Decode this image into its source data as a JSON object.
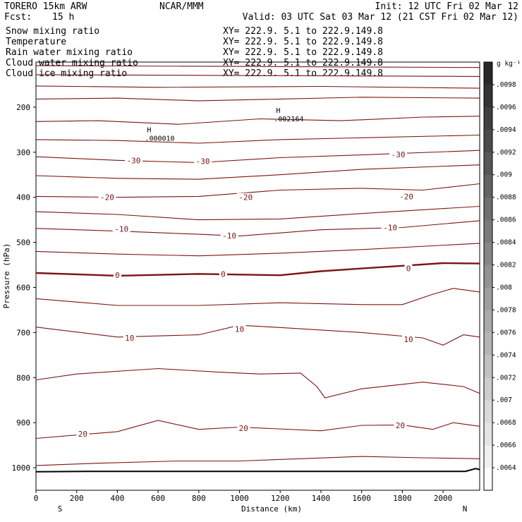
{
  "header": {
    "model": "TORERO  15km ARW",
    "org": "NCAR/MMM",
    "init": "Init: 12 UTC Fri 02 Mar 12",
    "fcst_label": "Fcst:",
    "fcst_value": "15 h",
    "valid": "Valid: 03 UTC Sat 03 Mar 12 (21 CST Fri 02 Mar 12)"
  },
  "fields": [
    {
      "name": "Snow mixing ratio",
      "color": "#000000",
      "xy": "XY= 222.9.  5.1 to 222.9.149.8",
      "xy_color": "#000000"
    },
    {
      "name": "Temperature",
      "color": "#cc0000",
      "xy": "XY= 222.9.  5.1 to 222.9.149.8",
      "xy_color": "#cc0000"
    },
    {
      "name": "Rain water mixing ratio",
      "color": "#cc0000",
      "xy": "XY= 222.9.  5.1 to 222.9.149.8",
      "xy_color": "#cc0000"
    },
    {
      "name": "Cloud water mixing ratio",
      "color": "#2222aa",
      "xy": "XY= 222.9.  5.1 to 222.9.149.8",
      "xy_color": "#2222aa"
    },
    {
      "name": "Cloud ice mixing ratio",
      "color": "#000000",
      "xy": "XY= 222.9.  5.1 to 222.9.149.8",
      "xy_color": "#000000"
    }
  ],
  "colors": {
    "isotherm": "#7a1414",
    "ground": "#000000"
  },
  "chart_data": {
    "type": "line",
    "xlabel": "Distance (km)",
    "ylabel": "Pressure (hPa)",
    "xlim": [
      0,
      2180
    ],
    "ylim": [
      1050,
      100
    ],
    "x_ticks": [
      0,
      200,
      400,
      600,
      800,
      1000,
      1200,
      1400,
      1600,
      1800,
      2000
    ],
    "y_ticks": [
      200,
      300,
      400,
      500,
      600,
      700,
      800,
      900,
      1000
    ],
    "x_end_labels": {
      "left": "S",
      "right": "N"
    },
    "isotherm_interval_c": 5,
    "isotherms": [
      {
        "temp": -60,
        "p": [
          [
            0,
            108
          ],
          [
            1200,
            110
          ],
          [
            2180,
            112
          ]
        ]
      },
      {
        "temp": -55,
        "p": [
          [
            0,
            128
          ],
          [
            1200,
            130
          ],
          [
            2180,
            132
          ]
        ]
      },
      {
        "temp": -50,
        "p": [
          [
            0,
            153
          ],
          [
            600,
            156
          ],
          [
            1400,
            154
          ],
          [
            2180,
            158
          ]
        ]
      },
      {
        "temp": -45,
        "p": [
          [
            0,
            182
          ],
          [
            400,
            180
          ],
          [
            800,
            186
          ],
          [
            1200,
            182
          ],
          [
            1600,
            178
          ],
          [
            2180,
            180
          ]
        ]
      },
      {
        "temp": -40,
        "p": [
          [
            0,
            232
          ],
          [
            300,
            230
          ],
          [
            700,
            238
          ],
          [
            1100,
            226
          ],
          [
            1500,
            230
          ],
          [
            1900,
            222
          ],
          [
            2180,
            220
          ]
        ]
      },
      {
        "temp": -35,
        "p": [
          [
            0,
            272
          ],
          [
            400,
            274
          ],
          [
            800,
            280
          ],
          [
            1200,
            272
          ],
          [
            1600,
            268
          ],
          [
            2180,
            262
          ]
        ]
      },
      {
        "temp": -30,
        "p": [
          [
            0,
            310
          ],
          [
            400,
            318
          ],
          [
            800,
            323
          ],
          [
            1200,
            312
          ],
          [
            1600,
            306
          ],
          [
            2180,
            296
          ]
        ]
      },
      {
        "temp": -25,
        "p": [
          [
            0,
            352
          ],
          [
            400,
            358
          ],
          [
            800,
            360
          ],
          [
            1200,
            350
          ],
          [
            1600,
            338
          ],
          [
            2180,
            328
          ]
        ]
      },
      {
        "temp": -20,
        "p": [
          [
            0,
            398
          ],
          [
            400,
            400
          ],
          [
            800,
            398
          ],
          [
            1200,
            384
          ],
          [
            1600,
            380
          ],
          [
            1900,
            384
          ],
          [
            2180,
            370
          ]
        ]
      },
      {
        "temp": -15,
        "p": [
          [
            0,
            432
          ],
          [
            400,
            438
          ],
          [
            800,
            450
          ],
          [
            1200,
            448
          ],
          [
            1600,
            436
          ],
          [
            2180,
            420
          ]
        ]
      },
      {
        "temp": -10,
        "p": [
          [
            0,
            469
          ],
          [
            400,
            475
          ],
          [
            800,
            482
          ],
          [
            1000,
            486
          ],
          [
            1400,
            472
          ],
          [
            1800,
            467
          ],
          [
            2180,
            452
          ]
        ]
      },
      {
        "temp": -5,
        "p": [
          [
            0,
            520
          ],
          [
            400,
            526
          ],
          [
            800,
            530
          ],
          [
            1200,
            524
          ],
          [
            1600,
            516
          ],
          [
            2180,
            502
          ]
        ]
      },
      {
        "temp": 0,
        "p": [
          [
            0,
            568
          ],
          [
            400,
            574
          ],
          [
            800,
            570
          ],
          [
            1200,
            573
          ],
          [
            1400,
            564
          ],
          [
            1600,
            558
          ],
          [
            1800,
            552
          ],
          [
            2000,
            546
          ],
          [
            2180,
            547
          ]
        ]
      },
      {
        "temp": 5,
        "p": [
          [
            0,
            625
          ],
          [
            400,
            640
          ],
          [
            800,
            640
          ],
          [
            1200,
            634
          ],
          [
            1600,
            638
          ],
          [
            1800,
            638
          ],
          [
            1950,
            615
          ],
          [
            2050,
            602
          ],
          [
            2180,
            610
          ]
        ]
      },
      {
        "temp": 10,
        "p": [
          [
            0,
            688
          ],
          [
            400,
            710
          ],
          [
            800,
            705
          ],
          [
            1000,
            684
          ],
          [
            1200,
            689
          ],
          [
            1600,
            700
          ],
          [
            1900,
            712
          ],
          [
            2000,
            728
          ],
          [
            2100,
            705
          ],
          [
            2180,
            710
          ]
        ]
      },
      {
        "temp": 15,
        "p": [
          [
            0,
            805
          ],
          [
            200,
            792
          ],
          [
            600,
            780
          ],
          [
            900,
            788
          ],
          [
            1100,
            792
          ],
          [
            1300,
            790
          ],
          [
            1380,
            820
          ],
          [
            1420,
            845
          ],
          [
            1600,
            825
          ],
          [
            1900,
            810
          ],
          [
            2100,
            820
          ],
          [
            2180,
            835
          ]
        ]
      },
      {
        "temp": 20,
        "p": [
          [
            0,
            935
          ],
          [
            400,
            920
          ],
          [
            600,
            895
          ],
          [
            800,
            915
          ],
          [
            1000,
            910
          ],
          [
            1400,
            918
          ],
          [
            1600,
            906
          ],
          [
            1800,
            905
          ],
          [
            1950,
            915
          ],
          [
            2050,
            900
          ],
          [
            2180,
            908
          ]
        ]
      },
      {
        "temp": 25,
        "p": [
          [
            0,
            995
          ],
          [
            300,
            990
          ],
          [
            700,
            985
          ],
          [
            1000,
            985
          ],
          [
            1300,
            980
          ],
          [
            1600,
            975
          ],
          [
            1900,
            978
          ],
          [
            2180,
            980
          ]
        ]
      }
    ],
    "isotherm_labels": [
      {
        "text": "-30",
        "x": 480,
        "p": 318
      },
      {
        "text": "-30",
        "x": 820,
        "p": 320
      },
      {
        "text": "-30",
        "x": 1780,
        "p": 305
      },
      {
        "text": "-20",
        "x": 350,
        "p": 400
      },
      {
        "text": "-20",
        "x": 1030,
        "p": 400
      },
      {
        "text": "-20",
        "x": 1820,
        "p": 398
      },
      {
        "text": "-10",
        "x": 420,
        "p": 470
      },
      {
        "text": "-10",
        "x": 950,
        "p": 485
      },
      {
        "text": "-10",
        "x": 1740,
        "p": 467
      },
      {
        "text": "0",
        "x": 400,
        "p": 573
      },
      {
        "text": "0",
        "x": 920,
        "p": 570
      },
      {
        "text": "0",
        "x": 1830,
        "p": 558
      },
      {
        "text": "10",
        "x": 460,
        "p": 712
      },
      {
        "text": "10",
        "x": 1000,
        "p": 692
      },
      {
        "text": "10",
        "x": 1830,
        "p": 715
      },
      {
        "text": "20",
        "x": 230,
        "p": 925
      },
      {
        "text": "20",
        "x": 1020,
        "p": 912
      },
      {
        "text": "20",
        "x": 1790,
        "p": 906
      }
    ],
    "ground_p": [
      [
        0,
        1009
      ],
      [
        250,
        1008
      ],
      [
        2110,
        1008
      ],
      [
        2160,
        1002
      ],
      [
        2180,
        1004
      ]
    ],
    "annotations": [
      {
        "marker": "H",
        "value": ".000010",
        "x": 556,
        "p": 265
      },
      {
        "marker": "H",
        "value": ".002164",
        "x": 1190,
        "p": 222
      }
    ],
    "colorbar": {
      "units": "g kg⁻¹",
      "ticks": [
        ".0098",
        ".0096",
        ".0094",
        ".0092",
        ".009",
        ".0088",
        ".0086",
        ".0084",
        ".0082",
        ".008",
        ".0078",
        ".0076",
        ".0074",
        ".0072",
        ".007",
        ".0068",
        ".0066",
        ".0064"
      ]
    }
  }
}
